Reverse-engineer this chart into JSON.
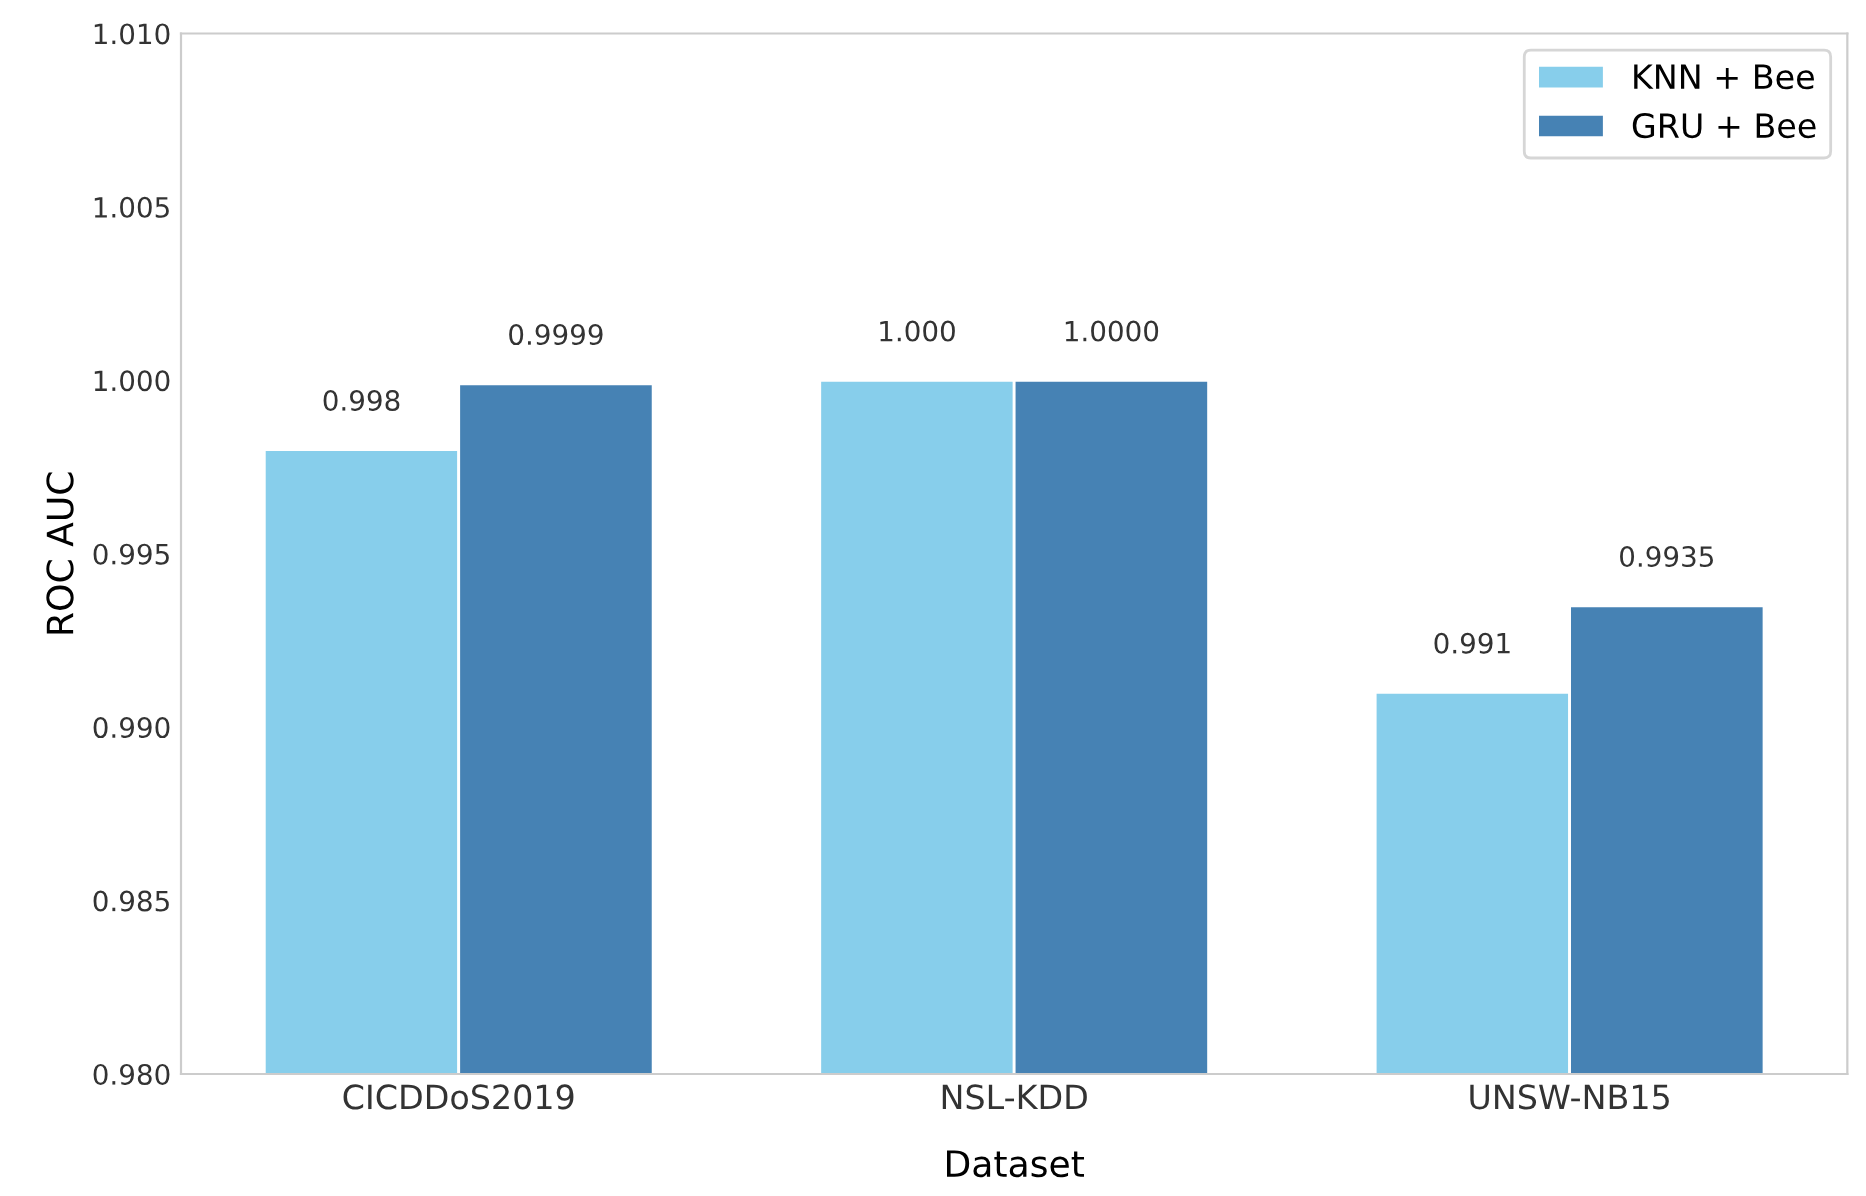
{
  "chart_data": {
    "type": "bar",
    "xlabel": "Dataset",
    "ylabel": "ROC AUC",
    "categories": [
      "CICDDoS2019",
      "NSL-KDD",
      "UNSW-NB15"
    ],
    "series": [
      {
        "name": "KNN + Bee",
        "color": "#87ceeb",
        "values": [
          0.998,
          1.0,
          0.991
        ],
        "value_labels": [
          "0.998",
          "1.000",
          "0.991"
        ]
      },
      {
        "name": "GRU + Bee",
        "color": "#4682b4",
        "values": [
          0.9999,
          1.0,
          0.9935
        ],
        "value_labels": [
          "0.9999",
          "1.0000",
          "0.9935"
        ]
      }
    ],
    "ylim": [
      0.98,
      1.01
    ],
    "yticks": [
      {
        "value": 0.98,
        "label": "0.980"
      },
      {
        "value": 0.985,
        "label": "0.985"
      },
      {
        "value": 0.99,
        "label": "0.990"
      },
      {
        "value": 0.995,
        "label": "0.995"
      },
      {
        "value": 1.0,
        "label": "1.000"
      },
      {
        "value": 1.005,
        "label": "1.005"
      },
      {
        "value": 1.01,
        "label": "1.010"
      }
    ],
    "grid": false,
    "legend": "top right"
  }
}
